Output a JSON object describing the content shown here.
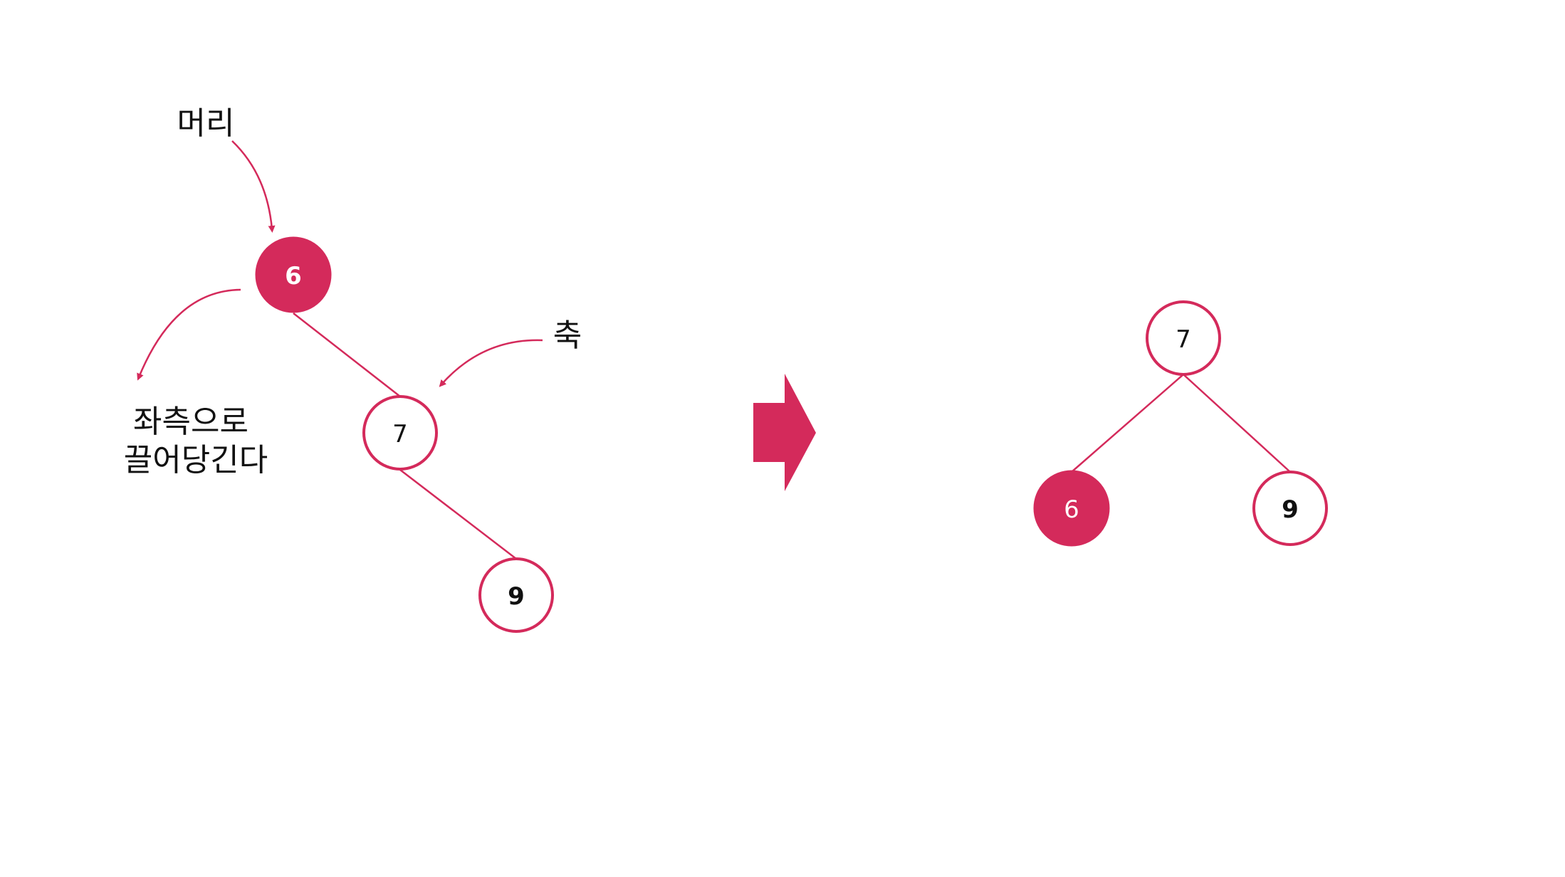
{
  "colors": {
    "accent": "#d42a5b",
    "text_dark": "#111111",
    "text_light": "#ffffff",
    "background": "#ffffff"
  },
  "before_tree": {
    "nodes": [
      {
        "value": "6",
        "style": "filled"
      },
      {
        "value": "7",
        "style": "outline"
      },
      {
        "value": "9",
        "style": "outline"
      }
    ],
    "annotations": {
      "head_label": "머리",
      "pivot_label": "축",
      "pull_label_line1": "좌측으로",
      "pull_label_line2": "끌어당긴다"
    }
  },
  "transition_arrow": "right-arrow-icon",
  "after_tree": {
    "nodes": [
      {
        "value": "7",
        "style": "outline"
      },
      {
        "value": "6",
        "style": "filled"
      },
      {
        "value": "9",
        "style": "outline"
      }
    ]
  }
}
